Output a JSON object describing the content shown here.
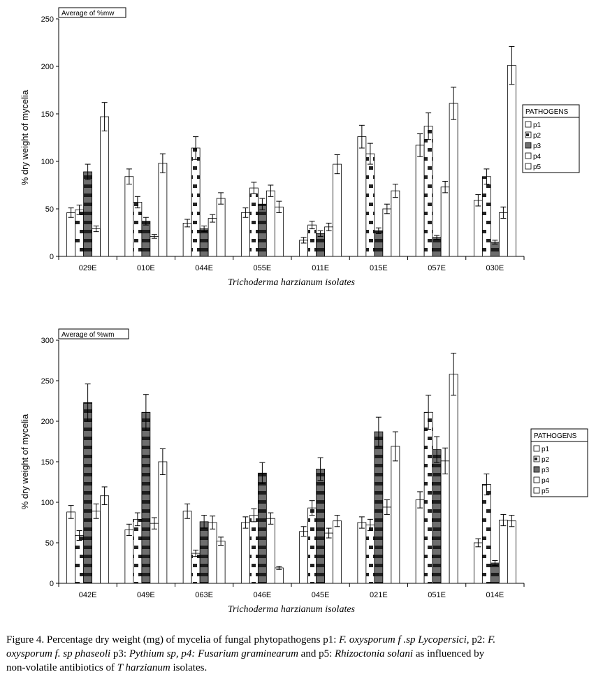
{
  "series_names": [
    "p1",
    "p2",
    "p3",
    "p4",
    "p5"
  ],
  "chart_data": [
    {
      "type": "bar",
      "title": "Average of %mw",
      "ylabel": "% dry weight of mycelia",
      "xlabel": "Trichoderma harzianum  isolates",
      "legend_title": "PATHOGENS",
      "legend_position": "right",
      "ylim": [
        0,
        250
      ],
      "yticks": [
        0,
        50,
        100,
        150,
        200,
        250
      ],
      "categories": [
        "029E",
        "010E",
        "044E",
        "055E",
        "011E",
        "015E",
        "057E",
        "030E"
      ],
      "series": [
        {
          "name": "p1",
          "values": [
            46,
            84,
            35,
            46,
            17,
            126,
            117,
            59
          ],
          "errors": [
            5,
            8,
            4,
            5,
            3,
            12,
            12,
            6
          ]
        },
        {
          "name": "p2",
          "values": [
            49,
            57,
            114,
            72,
            33,
            108,
            137,
            84
          ],
          "errors": [
            5,
            6,
            12,
            6,
            4,
            11,
            14,
            8
          ]
        },
        {
          "name": "p3",
          "values": [
            89,
            37,
            29,
            55,
            24,
            27,
            20,
            15
          ],
          "errors": [
            8,
            4,
            3,
            6,
            3,
            3,
            2,
            2
          ]
        },
        {
          "name": "p4",
          "values": [
            29,
            21,
            40,
            69,
            31,
            50,
            73,
            46
          ],
          "errors": [
            3,
            2,
            4,
            6,
            4,
            5,
            6,
            6
          ]
        },
        {
          "name": "p5",
          "values": [
            147,
            98,
            61,
            52,
            97,
            69,
            161,
            201
          ],
          "errors": [
            15,
            10,
            6,
            6,
            10,
            7,
            17,
            20
          ]
        }
      ]
    },
    {
      "type": "bar",
      "title": "Average of %wm",
      "ylabel": "% dry weight of mycelia",
      "xlabel": "Trichoderma harzianum isolates",
      "legend_title": "PATHOGENS",
      "legend_position": "right",
      "ylim": [
        0,
        300
      ],
      "yticks": [
        0,
        50,
        100,
        150,
        200,
        250,
        300
      ],
      "categories": [
        "042E",
        "049E",
        "063E",
        "046E",
        "045E",
        "021E",
        "051E",
        "014E"
      ],
      "series": [
        {
          "name": "p1",
          "values": [
            88,
            66,
            89,
            75,
            64,
            75,
            103,
            50
          ],
          "errors": [
            8,
            7,
            9,
            7,
            6,
            7,
            10,
            5
          ]
        },
        {
          "name": "p2",
          "values": [
            59,
            79,
            37,
            84,
            93,
            72,
            211,
            122
          ],
          "errors": [
            6,
            8,
            4,
            8,
            9,
            7,
            21,
            13
          ]
        },
        {
          "name": "p3",
          "values": [
            223,
            211,
            76,
            136,
            141,
            187,
            165,
            25
          ],
          "errors": [
            23,
            22,
            8,
            13,
            14,
            18,
            16,
            3
          ]
        },
        {
          "name": "p4",
          "values": [
            89,
            74,
            75,
            80,
            62,
            94,
            151,
            78
          ],
          "errors": [
            9,
            7,
            8,
            7,
            6,
            9,
            16,
            7
          ]
        },
        {
          "name": "p5",
          "values": [
            108,
            150,
            52,
            19,
            77,
            169,
            258,
            77
          ],
          "errors": [
            11,
            16,
            5,
            2,
            7,
            18,
            26,
            7
          ]
        }
      ]
    }
  ],
  "caption": {
    "lines": [
      [
        {
          "t": "Figure 4. Percentage dry weight (mg) of mycelia of fungal phytopathogens p1: ",
          "i": false
        },
        {
          "t": "F. oxysporum f .sp Lycopersici,",
          "i": true
        },
        {
          "t": " p2: ",
          "i": false
        },
        {
          "t": "F.",
          "i": true
        }
      ],
      [
        {
          "t": "oxysporum f. sp phaseoli",
          "i": true
        },
        {
          "t": " p3: ",
          "i": false
        },
        {
          "t": "Pythium sp, p4: Fusarium graminearum",
          "i": true
        },
        {
          "t": " and p5: ",
          "i": false
        },
        {
          "t": "Rhizoctonia solani",
          "i": true
        },
        {
          "t": " as influenced by",
          "i": false
        }
      ],
      [
        {
          "t": "non-volatile antibiotics of ",
          "i": false
        },
        {
          "t": "T harzianum",
          "i": true
        },
        {
          "t": " isolates.",
          "i": false
        }
      ]
    ]
  }
}
